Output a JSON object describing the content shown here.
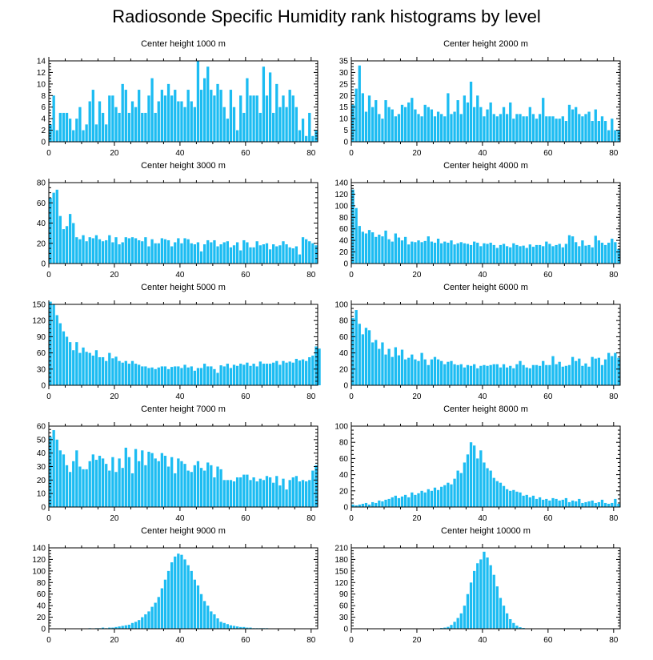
{
  "title": "Radiosonde Specific Humidity rank histograms by level",
  "colors": {
    "bar": "#1cbcf2",
    "axis": "#000000",
    "background": "#ffffff"
  },
  "chart_data": [
    {
      "type": "bar",
      "title": "Center height 1000 m",
      "xlim": [
        0,
        82
      ],
      "ylim": [
        0,
        14
      ],
      "xticks": [
        0,
        20,
        40,
        60,
        80
      ],
      "yticks": [
        0,
        2,
        4,
        6,
        8,
        10,
        12,
        14
      ],
      "values": [
        3,
        8,
        2,
        5,
        5,
        5,
        4,
        2,
        4,
        6,
        2,
        3,
        7,
        9,
        3,
        7,
        5,
        3,
        8,
        8,
        6,
        5,
        10,
        9,
        5,
        7,
        6,
        9,
        5,
        5,
        8,
        11,
        5,
        7,
        9,
        8,
        10,
        8,
        9,
        7,
        7,
        6,
        9,
        7,
        6,
        14,
        9,
        11,
        13,
        9,
        8,
        10,
        9,
        6,
        4,
        9,
        6,
        2,
        8,
        5,
        11,
        8,
        8,
        8,
        5,
        13,
        8,
        12,
        5,
        10,
        6,
        8,
        6,
        9,
        8,
        6,
        2,
        4,
        1,
        5,
        1,
        2
      ]
    },
    {
      "type": "bar",
      "title": "Center height 2000 m",
      "xlim": [
        0,
        82
      ],
      "ylim": [
        0,
        35
      ],
      "xticks": [
        0,
        20,
        40,
        60,
        80
      ],
      "yticks": [
        0,
        5,
        10,
        15,
        20,
        25,
        30,
        35
      ],
      "values": [
        16,
        23,
        33,
        21,
        13,
        20,
        15,
        18,
        12,
        10,
        18,
        15,
        14,
        11,
        12,
        16,
        15,
        17,
        19,
        14,
        12,
        11,
        16,
        15,
        14,
        11,
        13,
        12,
        11,
        21,
        12,
        13,
        18,
        12,
        20,
        17,
        26,
        15,
        20,
        15,
        11,
        14,
        17,
        12,
        11,
        12,
        15,
        12,
        17,
        10,
        12,
        12,
        11,
        11,
        15,
        12,
        10,
        12,
        19,
        11,
        11,
        11,
        10,
        10,
        11,
        9,
        16,
        14,
        15,
        12,
        11,
        12,
        13,
        9,
        14,
        9,
        11,
        9,
        5,
        10,
        5,
        5
      ]
    },
    {
      "type": "bar",
      "title": "Center height 3000 m",
      "xlim": [
        0,
        82
      ],
      "ylim": [
        0,
        80
      ],
      "xticks": [
        0,
        20,
        40,
        60,
        80
      ],
      "yticks": [
        0,
        20,
        40,
        60,
        80
      ],
      "values": [
        65,
        70,
        73,
        47,
        34,
        37,
        49,
        40,
        26,
        24,
        28,
        22,
        26,
        25,
        28,
        24,
        22,
        23,
        28,
        21,
        26,
        19,
        21,
        26,
        25,
        26,
        25,
        23,
        22,
        26,
        17,
        24,
        20,
        20,
        25,
        24,
        23,
        17,
        21,
        25,
        20,
        25,
        24,
        20,
        19,
        21,
        12,
        19,
        23,
        21,
        23,
        17,
        19,
        21,
        22,
        16,
        18,
        21,
        13,
        23,
        21,
        16,
        16,
        22,
        18,
        19,
        20,
        14,
        19,
        17,
        18,
        22,
        19,
        16,
        15,
        17,
        9,
        26,
        24,
        22,
        20,
        18
      ]
    },
    {
      "type": "bar",
      "title": "Center height 4000 m",
      "xlim": [
        0,
        82
      ],
      "ylim": [
        0,
        140
      ],
      "xticks": [
        0,
        20,
        40,
        60,
        80
      ],
      "yticks": [
        0,
        20,
        40,
        60,
        80,
        100,
        120,
        140
      ],
      "values": [
        128,
        96,
        65,
        55,
        52,
        58,
        54,
        46,
        50,
        47,
        57,
        42,
        38,
        52,
        45,
        40,
        46,
        33,
        38,
        37,
        40,
        37,
        39,
        47,
        38,
        36,
        43,
        35,
        38,
        36,
        40,
        33,
        35,
        37,
        35,
        34,
        32,
        38,
        36,
        30,
        35,
        34,
        36,
        32,
        27,
        32,
        34,
        30,
        28,
        35,
        32,
        30,
        31,
        27,
        33,
        29,
        32,
        32,
        30,
        38,
        34,
        30,
        32,
        34,
        28,
        34,
        49,
        47,
        37,
        30,
        40,
        31,
        32,
        28,
        48,
        40,
        36,
        32,
        36,
        43,
        37,
        25
      ]
    },
    {
      "type": "bar",
      "title": "Center height 5000 m",
      "xlim": [
        0,
        82
      ],
      "ylim": [
        0,
        150
      ],
      "xticks": [
        0,
        20,
        40,
        60,
        80
      ],
      "yticks": [
        0,
        30,
        60,
        90,
        120,
        150
      ],
      "values": [
        155,
        150,
        130,
        115,
        100,
        90,
        80,
        65,
        80,
        60,
        70,
        62,
        60,
        55,
        65,
        52,
        52,
        45,
        60,
        50,
        53,
        45,
        42,
        45,
        40,
        45,
        40,
        38,
        35,
        35,
        32,
        33,
        30,
        33,
        35,
        35,
        30,
        34,
        35,
        35,
        32,
        38,
        33,
        35,
        27,
        32,
        32,
        40,
        35,
        35,
        30,
        23,
        37,
        35,
        40,
        32,
        38,
        36,
        40,
        38,
        42,
        36,
        40,
        35,
        44,
        40,
        40,
        40,
        42,
        45,
        38,
        45,
        42,
        44,
        42,
        49,
        46,
        48,
        45,
        52,
        55,
        72,
        68
      ]
    },
    {
      "type": "bar",
      "title": "Center height 6000 m",
      "xlim": [
        0,
        82
      ],
      "ylim": [
        0,
        100
      ],
      "xticks": [
        0,
        20,
        40,
        60,
        80
      ],
      "yticks": [
        0,
        20,
        40,
        60,
        80,
        100
      ],
      "values": [
        83,
        93,
        76,
        63,
        71,
        68,
        53,
        56,
        45,
        53,
        38,
        45,
        35,
        47,
        37,
        44,
        32,
        34,
        38,
        32,
        30,
        40,
        32,
        25,
        32,
        35,
        32,
        30,
        26,
        29,
        30,
        26,
        25,
        26,
        22,
        25,
        24,
        26,
        21,
        24,
        25,
        24,
        25,
        26,
        26,
        22,
        26,
        22,
        24,
        21,
        26,
        30,
        25,
        22,
        21,
        25,
        25,
        24,
        30,
        25,
        25,
        36,
        26,
        29,
        23,
        24,
        25,
        35,
        30,
        33,
        24,
        27,
        23,
        35,
        33,
        34,
        25,
        32,
        40,
        36,
        40,
        34
      ]
    },
    {
      "type": "bar",
      "title": "Center height 7000 m",
      "xlim": [
        0,
        82
      ],
      "ylim": [
        0,
        60
      ],
      "xticks": [
        0,
        20,
        40,
        60,
        80
      ],
      "yticks": [
        0,
        10,
        20,
        30,
        40,
        50,
        60
      ],
      "values": [
        52,
        57,
        50,
        42,
        39,
        31,
        26,
        34,
        42,
        30,
        28,
        28,
        34,
        39,
        35,
        38,
        36,
        32,
        27,
        37,
        26,
        36,
        29,
        44,
        37,
        25,
        43,
        34,
        42,
        31,
        41,
        40,
        36,
        34,
        40,
        38,
        30,
        37,
        25,
        36,
        34,
        32,
        27,
        26,
        31,
        34,
        29,
        27,
        33,
        31,
        22,
        30,
        28,
        20,
        20,
        20,
        19,
        22,
        22,
        24,
        24,
        20,
        22,
        19,
        21,
        20,
        23,
        22,
        18,
        23,
        16,
        21,
        13,
        20,
        22,
        23,
        19,
        20,
        19,
        20,
        27,
        31
      ]
    },
    {
      "type": "bar",
      "title": "Center height 8000 m",
      "xlim": [
        0,
        82
      ],
      "ylim": [
        0,
        100
      ],
      "xticks": [
        0,
        20,
        40,
        60,
        80
      ],
      "yticks": [
        0,
        20,
        40,
        60,
        80,
        100
      ],
      "values": [
        3,
        2,
        3,
        4,
        5,
        3,
        6,
        5,
        8,
        7,
        9,
        10,
        12,
        14,
        11,
        13,
        15,
        12,
        18,
        15,
        17,
        20,
        18,
        22,
        20,
        24,
        21,
        25,
        27,
        30,
        28,
        35,
        45,
        42,
        55,
        65,
        80,
        76,
        60,
        70,
        55,
        48,
        45,
        36,
        32,
        30,
        26,
        22,
        20,
        21,
        19,
        18,
        14,
        15,
        12,
        14,
        10,
        12,
        9,
        10,
        8,
        11,
        10,
        8,
        9,
        11,
        6,
        8,
        7,
        10,
        5,
        6,
        7,
        8,
        5,
        6,
        9,
        5,
        4,
        5,
        10,
        4
      ]
    },
    {
      "type": "bar",
      "title": "Center height 9000 m",
      "xlim": [
        0,
        82
      ],
      "ylim": [
        0,
        140
      ],
      "xticks": [
        0,
        20,
        40,
        60,
        80
      ],
      "yticks": [
        0,
        20,
        40,
        60,
        80,
        100,
        120,
        140
      ],
      "values": [
        0,
        0,
        0,
        0,
        0,
        0,
        0,
        0,
        0,
        0,
        0,
        0,
        1,
        0,
        1,
        1,
        2,
        1,
        2,
        2,
        3,
        4,
        5,
        6,
        7,
        10,
        12,
        15,
        20,
        25,
        30,
        38,
        45,
        55,
        70,
        85,
        100,
        115,
        125,
        130,
        128,
        120,
        110,
        100,
        85,
        75,
        60,
        48,
        40,
        30,
        25,
        18,
        12,
        10,
        8,
        6,
        5,
        4,
        3,
        3,
        2,
        2,
        1,
        1,
        1,
        1,
        1,
        0,
        0,
        0,
        0,
        0,
        0,
        0,
        0,
        0,
        0,
        0,
        0,
        0,
        0,
        0
      ]
    },
    {
      "type": "bar",
      "title": "Center height 10000 m",
      "xlim": [
        0,
        82
      ],
      "ylim": [
        0,
        210
      ],
      "xticks": [
        0,
        20,
        40,
        60,
        80
      ],
      "yticks": [
        0,
        30,
        60,
        90,
        120,
        150,
        180,
        210
      ],
      "values": [
        0,
        0,
        0,
        0,
        0,
        0,
        0,
        0,
        0,
        0,
        0,
        0,
        0,
        0,
        0,
        0,
        0,
        0,
        0,
        0,
        0,
        0,
        0,
        0,
        0,
        0,
        1,
        2,
        3,
        5,
        10,
        18,
        28,
        40,
        60,
        90,
        120,
        150,
        170,
        180,
        200,
        185,
        165,
        140,
        110,
        80,
        60,
        40,
        25,
        15,
        8,
        4,
        2,
        1,
        1,
        0,
        0,
        0,
        0,
        0,
        0,
        0,
        0,
        0,
        0,
        0,
        0,
        0,
        0,
        0,
        0,
        0,
        0,
        0,
        0,
        0,
        0,
        0,
        0,
        0,
        0,
        0
      ]
    }
  ]
}
